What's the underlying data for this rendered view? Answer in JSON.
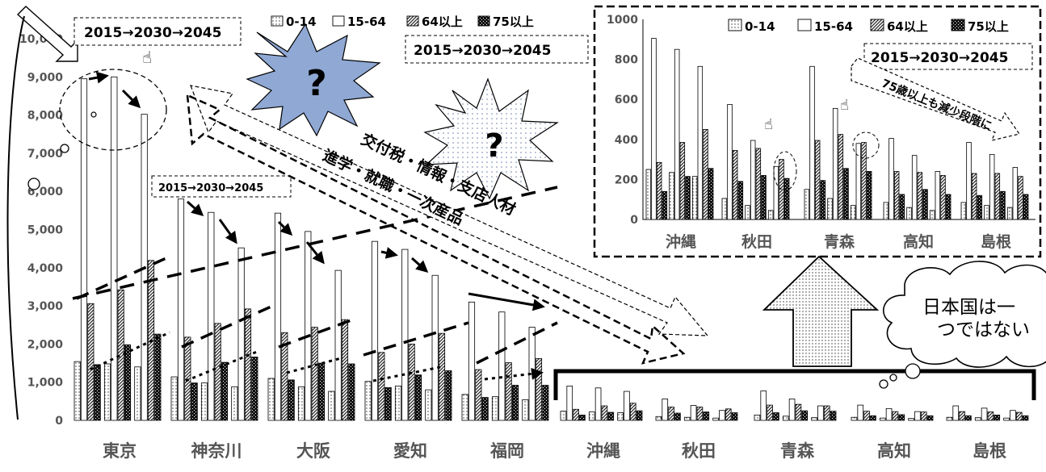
{
  "chart_data": [
    {
      "type": "bar",
      "categories": [
        "東京",
        "神奈川",
        "大阪",
        "愛知",
        "福岡",
        "沖縄",
        "秋田",
        "青森",
        "高知",
        "島根"
      ],
      "periods": [
        "2015",
        "2030",
        "2045"
      ],
      "ylim": [
        0,
        10000
      ],
      "yticks": [
        "0",
        "1,000",
        "2,000",
        "3,000",
        "4,000",
        "5,000",
        "6,000",
        "7,000",
        "8,000",
        "9,000",
        "10,000"
      ],
      "series": [
        {
          "name": "0-14",
          "values": [
            [
              1540,
              1480,
              1400
            ],
            [
              1140,
              980,
              880
            ],
            [
              1100,
              880,
              760
            ],
            [
              1020,
              900,
              800
            ],
            [
              680,
              620,
              540
            ],
            [
              240,
              220,
              200
            ],
            [
              100,
              80,
              60
            ],
            [
              140,
              110,
              70
            ],
            [
              80,
              60,
              50
            ],
            [
              80,
              70,
              60
            ]
          ]
        },
        {
          "name": "15-64",
          "values": [
            [
              8950,
              9000,
              8020
            ],
            [
              5800,
              5450,
              4520
            ],
            [
              5430,
              4950,
              3930
            ],
            [
              4690,
              4480,
              3800
            ],
            [
              3100,
              2840,
              2440
            ],
            [
              900,
              850,
              760
            ],
            [
              560,
              390,
              260
            ],
            [
              770,
              560,
              380
            ],
            [
              400,
              310,
              230
            ],
            [
              380,
              320,
              260
            ]
          ]
        },
        {
          "name": "64以上",
          "values": [
            [
              3060,
              3420,
              4190
            ],
            [
              2180,
              2540,
              2920
            ],
            [
              2300,
              2440,
              2640
            ],
            [
              1780,
              2000,
              2280
            ],
            [
              1330,
              1510,
              1620
            ],
            [
              290,
              380,
              450
            ],
            [
              350,
              350,
              300
            ],
            [
              400,
              420,
              380
            ],
            [
              240,
              230,
              220
            ],
            [
              230,
              220,
              210
            ]
          ]
        },
        {
          "name": "75以上",
          "values": [
            [
              1460,
              1980,
              2260
            ],
            [
              980,
              1520,
              1660
            ],
            [
              1060,
              1500,
              1480
            ],
            [
              860,
              1190,
              1300
            ],
            [
              600,
              920,
              920
            ],
            [
              140,
              210,
              250
            ],
            [
              190,
              220,
              200
            ],
            [
              200,
              250,
              240
            ],
            [
              120,
              150,
              120
            ],
            [
              120,
              140,
              120
            ]
          ]
        }
      ]
    },
    {
      "type": "bar",
      "categories": [
        "沖縄",
        "秋田",
        "青森",
        "高知",
        "島根"
      ],
      "periods": [
        "2015",
        "2030",
        "2045"
      ],
      "ylim": [
        0,
        1000
      ],
      "yticks": [
        "0",
        "200",
        "400",
        "600",
        "800",
        "1000"
      ],
      "series": [
        {
          "name": "0-14",
          "values": [
            [
              250,
              235,
              215
            ],
            [
              105,
              70,
              45
            ],
            [
              150,
              105,
              70
            ],
            [
              85,
              60,
              45
            ],
            [
              85,
              70,
              60
            ]
          ]
        },
        {
          "name": "15-64",
          "values": [
            [
              905,
              850,
              765
            ],
            [
              575,
              395,
              265
            ],
            [
              765,
              555,
              380
            ],
            [
              405,
              320,
              240
            ],
            [
              385,
              325,
              260
            ]
          ]
        },
        {
          "name": "64以上",
          "values": [
            [
              285,
              385,
              450
            ],
            [
              345,
              355,
              300
            ],
            [
              395,
              425,
              385
            ],
            [
              240,
              235,
              220
            ],
            [
              230,
              230,
              215
            ]
          ]
        },
        {
          "name": "75以上",
          "values": [
            [
              140,
              215,
              255
            ],
            [
              190,
              220,
              205
            ],
            [
              195,
              255,
              240
            ],
            [
              125,
              150,
              125
            ],
            [
              120,
              140,
              125
            ]
          ]
        }
      ]
    }
  ],
  "legend": [
    "0-14",
    "15-64",
    "64以上",
    "75以上"
  ],
  "annotations": {
    "period_main": "2015→2030→2045",
    "period_inset": "2015→2030→2045",
    "period_small": "2015→2030→2045",
    "burst_q": "?",
    "arrow_line1": "交付税・情報・支店人材",
    "arrow_line2": "進学・就職・一次産品",
    "inset_note": "75歳以上も減少段階に",
    "bubble_line1": "日本国は一",
    "bubble_line2": "つではない"
  },
  "colors": {
    "bar_outline": "#000000",
    "frame": "#000000",
    "tick_label": "#555555"
  }
}
